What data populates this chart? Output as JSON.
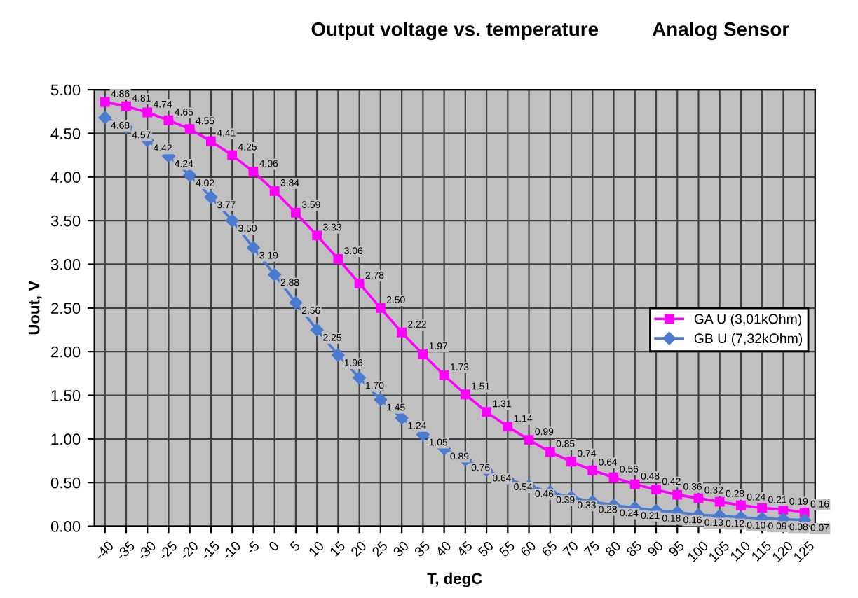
{
  "chart_data": {
    "type": "line",
    "title": "Output voltage vs. temperature",
    "subtitle": "Analog Sensor",
    "xlabel": "T, degC",
    "ylabel": "Uout, V",
    "categories": [
      "-40",
      "-35",
      "-30",
      "-25",
      "-20",
      "-15",
      "-10",
      "-5",
      "0",
      "5",
      "10",
      "15",
      "20",
      "25",
      "30",
      "35",
      "40",
      "45",
      "50",
      "55",
      "60",
      "65",
      "70",
      "75",
      "80",
      "85",
      "90",
      "95",
      "100",
      "105",
      "110",
      "115",
      "120",
      "125"
    ],
    "series": [
      {
        "name": "GA U (3,01kOhm)",
        "color": "#ff00ff",
        "marker": "square",
        "values": [
          4.86,
          4.81,
          4.74,
          4.65,
          4.55,
          4.41,
          4.25,
          4.06,
          3.84,
          3.59,
          3.33,
          3.06,
          2.78,
          2.5,
          2.22,
          1.97,
          1.73,
          1.51,
          1.31,
          1.14,
          0.99,
          0.85,
          0.74,
          0.64,
          0.56,
          0.48,
          0.42,
          0.36,
          0.32,
          0.28,
          0.24,
          0.21,
          0.19,
          0.16
        ],
        "value_labels": [
          "4.86",
          "4.81",
          "4.74",
          "4.65",
          "4.55",
          "4.41",
          "4.25",
          "4.06",
          "3.84",
          "3.59",
          "3.33",
          "3.06",
          "2.78",
          "2.50",
          "2.22",
          "1.97",
          "1.73",
          "1.51",
          "1.31",
          "1.14",
          "0.99",
          "0.85",
          "0.74",
          "0.64",
          "0.56",
          "0.48",
          "0.42",
          "0.36",
          "0.32",
          "0.28",
          "0.24",
          "0.21",
          "0.19",
          "0.16"
        ]
      },
      {
        "name": "GB U (7,32kOhm)",
        "color": "#4a7bd0",
        "marker": "diamond",
        "values": [
          4.68,
          4.57,
          4.42,
          4.24,
          4.02,
          3.77,
          3.5,
          3.19,
          2.88,
          2.56,
          2.25,
          1.96,
          1.7,
          1.45,
          1.24,
          1.05,
          0.89,
          0.76,
          0.64,
          0.54,
          0.46,
          0.39,
          0.33,
          0.28,
          0.24,
          0.21,
          0.18,
          0.16,
          0.13,
          0.12,
          0.1,
          0.09,
          0.08,
          0.07
        ],
        "value_labels": [
          "4.68",
          "4.57",
          "4.42",
          "4.24",
          "4.02",
          "3.77",
          "3.50",
          "3.19",
          "2.88",
          "2.56",
          "2.25",
          "1.96",
          "1.70",
          "1.45",
          "1.24",
          "1.05",
          "0.89",
          "0.76",
          "0.64",
          "0.54",
          "0.46",
          "0.39",
          "0.33",
          "0.28",
          "0.24",
          "0.21",
          "0.18",
          "0.16",
          "0.13",
          "0.12",
          "0.10",
          "0.09",
          "0.08",
          "0.07"
        ]
      }
    ],
    "ylim": [
      0,
      5
    ],
    "yticks": [
      {
        "value": 0,
        "label": "0.00"
      },
      {
        "value": 0.5,
        "label": "0.50"
      },
      {
        "value": 1,
        "label": "1.00"
      },
      {
        "value": 1.5,
        "label": "1.50"
      },
      {
        "value": 2,
        "label": "2.00"
      },
      {
        "value": 2.5,
        "label": "2.50"
      },
      {
        "value": 3,
        "label": "3.00"
      },
      {
        "value": 3.5,
        "label": "3.50"
      },
      {
        "value": 4,
        "label": "4.00"
      },
      {
        "value": 4.5,
        "label": "4.50"
      },
      {
        "value": 5,
        "label": "5.00"
      }
    ],
    "grid": true,
    "legend": "right",
    "line_style": "solid"
  }
}
